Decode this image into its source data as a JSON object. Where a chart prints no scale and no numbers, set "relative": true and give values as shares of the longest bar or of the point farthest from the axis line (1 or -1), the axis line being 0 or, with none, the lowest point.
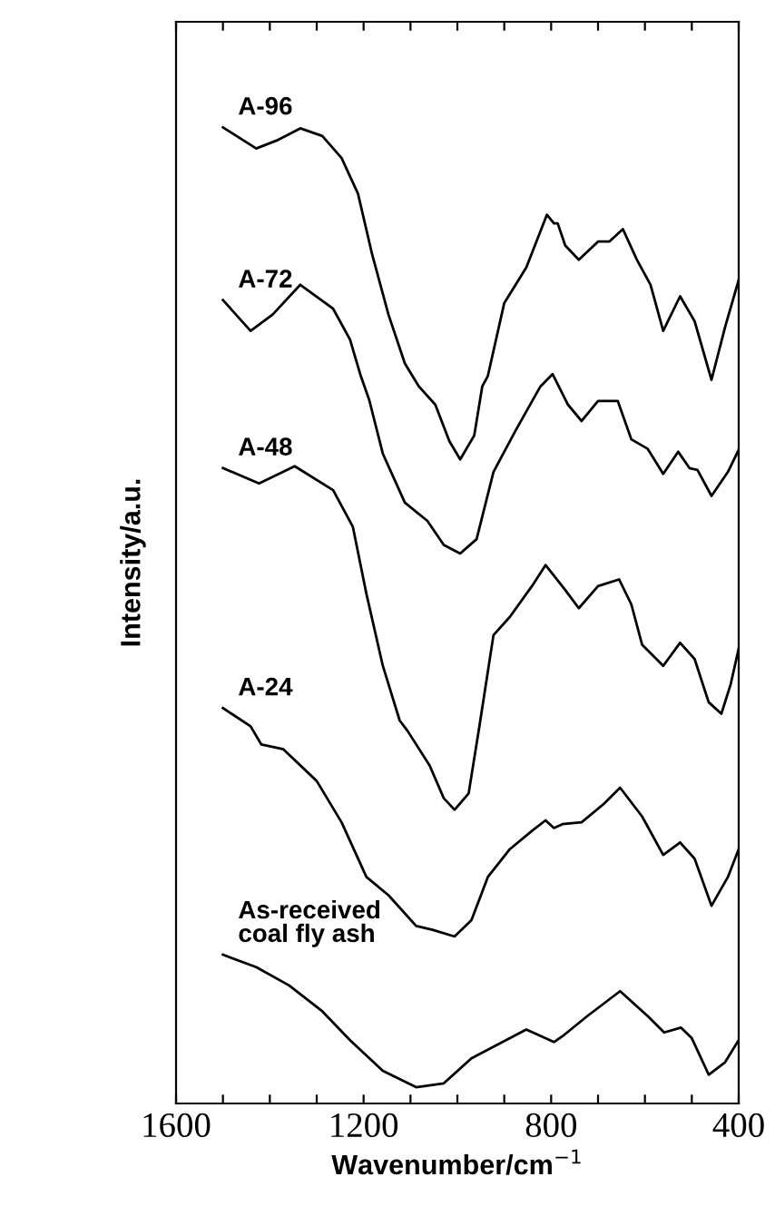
{
  "chart_data": {
    "type": "line",
    "relative": true,
    "xlabel": "Wavenumber/cm$^{−1}$",
    "ylabel": "Intensity/a.u.",
    "xlim": [
      1600,
      400
    ],
    "xticks": [
      1600,
      {
        "value": 1500,
        "label": null
      },
      {
        "value": 1400,
        "label": null
      },
      {
        "value": 1300,
        "label": null
      },
      1200,
      {
        "value": 1100,
        "label": null
      },
      {
        "value": 1000,
        "label": null
      },
      {
        "value": 900,
        "label": null
      },
      800,
      {
        "value": 700,
        "label": null
      },
      {
        "value": 600,
        "label": null
      },
      {
        "value": 500,
        "label": null
      },
      400
    ],
    "grid": false,
    "legend": false,
    "marker": "none",
    "line_style": "solid",
    "series": [
      {
        "name": "A-96",
        "color": "#000000",
        "x": [
          1500,
          1429,
          1382,
          1335,
          1288,
          1247,
          1212,
          1182,
          1147,
          1112,
          1082,
          1047,
          1017,
          994,
          964,
          947,
          935,
          900,
          853,
          809,
          794,
          786,
          770,
          741,
          700,
          676,
          647,
          617,
          588,
          561,
          525,
          494,
          458,
          429,
          400
        ],
        "values": [
          1.0,
          0.978,
          0.987,
          0.999,
          0.991,
          0.968,
          0.931,
          0.868,
          0.805,
          0.754,
          0.73,
          0.711,
          0.673,
          0.654,
          0.679,
          0.73,
          0.741,
          0.817,
          0.854,
          0.909,
          0.9,
          0.9,
          0.877,
          0.862,
          0.881,
          0.881,
          0.894,
          0.862,
          0.836,
          0.788,
          0.824,
          0.798,
          0.737,
          0.792,
          0.841
        ]
      },
      {
        "name": "A-72",
        "color": "#000000",
        "x": [
          1500,
          1441,
          1394,
          1335,
          1265,
          1229,
          1206,
          1188,
          1159,
          1112,
          1064,
          1029,
          994,
          959,
          923,
          876,
          823,
          797,
          764,
          735,
          700,
          658,
          629,
          594,
          561,
          529,
          505,
          488,
          458,
          423,
          400
        ],
        "values": [
          0.82,
          0.788,
          0.805,
          0.836,
          0.811,
          0.779,
          0.741,
          0.716,
          0.66,
          0.609,
          0.59,
          0.565,
          0.556,
          0.571,
          0.641,
          0.684,
          0.73,
          0.743,
          0.711,
          0.694,
          0.715,
          0.715,
          0.675,
          0.665,
          0.639,
          0.662,
          0.645,
          0.643,
          0.616,
          0.641,
          0.664
        ]
      },
      {
        "name": "A-48",
        "color": "#000000",
        "x": [
          1500,
          1423,
          1347,
          1265,
          1223,
          1194,
          1159,
          1123,
          1106,
          1059,
          1029,
          1006,
          976,
          953,
          923,
          888,
          841,
          812,
          794,
          770,
          741,
          700,
          655,
          629,
          606,
          561,
          525,
          494,
          464,
          437,
          417,
          400
        ],
        "values": [
          0.645,
          0.629,
          0.647,
          0.622,
          0.584,
          0.514,
          0.439,
          0.382,
          0.371,
          0.335,
          0.301,
          0.289,
          0.306,
          0.376,
          0.471,
          0.49,
          0.522,
          0.544,
          0.533,
          0.518,
          0.499,
          0.522,
          0.529,
          0.503,
          0.461,
          0.439,
          0.463,
          0.446,
          0.401,
          0.389,
          0.42,
          0.457
        ]
      },
      {
        "name": "A-24",
        "color": "#000000",
        "x": [
          1500,
          1441,
          1418,
          1371,
          1300,
          1247,
          1194,
          1147,
          1088,
          1053,
          1006,
          970,
          935,
          888,
          841,
          812,
          794,
          776,
          735,
          688,
          653,
          606,
          561,
          525,
          494,
          458,
          423,
          400
        ],
        "values": [
          0.395,
          0.376,
          0.357,
          0.352,
          0.319,
          0.276,
          0.219,
          0.2,
          0.168,
          0.164,
          0.157,
          0.174,
          0.219,
          0.248,
          0.267,
          0.278,
          0.27,
          0.274,
          0.276,
          0.295,
          0.312,
          0.282,
          0.242,
          0.255,
          0.238,
          0.189,
          0.219,
          0.248
        ]
      },
      {
        "name": "As-received\ncoal fly ash",
        "color": "#000000",
        "x": [
          1500,
          1429,
          1359,
          1288,
          1229,
          1159,
          1088,
          1029,
          970,
          912,
          853,
          794,
          776,
          723,
          653,
          594,
          559,
          523,
          500,
          464,
          429,
          400
        ],
        "values": [
          0.138,
          0.125,
          0.106,
          0.079,
          0.049,
          0.017,
          0.0,
          0.004,
          0.03,
          0.045,
          0.06,
          0.047,
          0.053,
          0.074,
          0.1,
          0.074,
          0.057,
          0.062,
          0.051,
          0.013,
          0.026,
          0.049
        ]
      }
    ]
  }
}
